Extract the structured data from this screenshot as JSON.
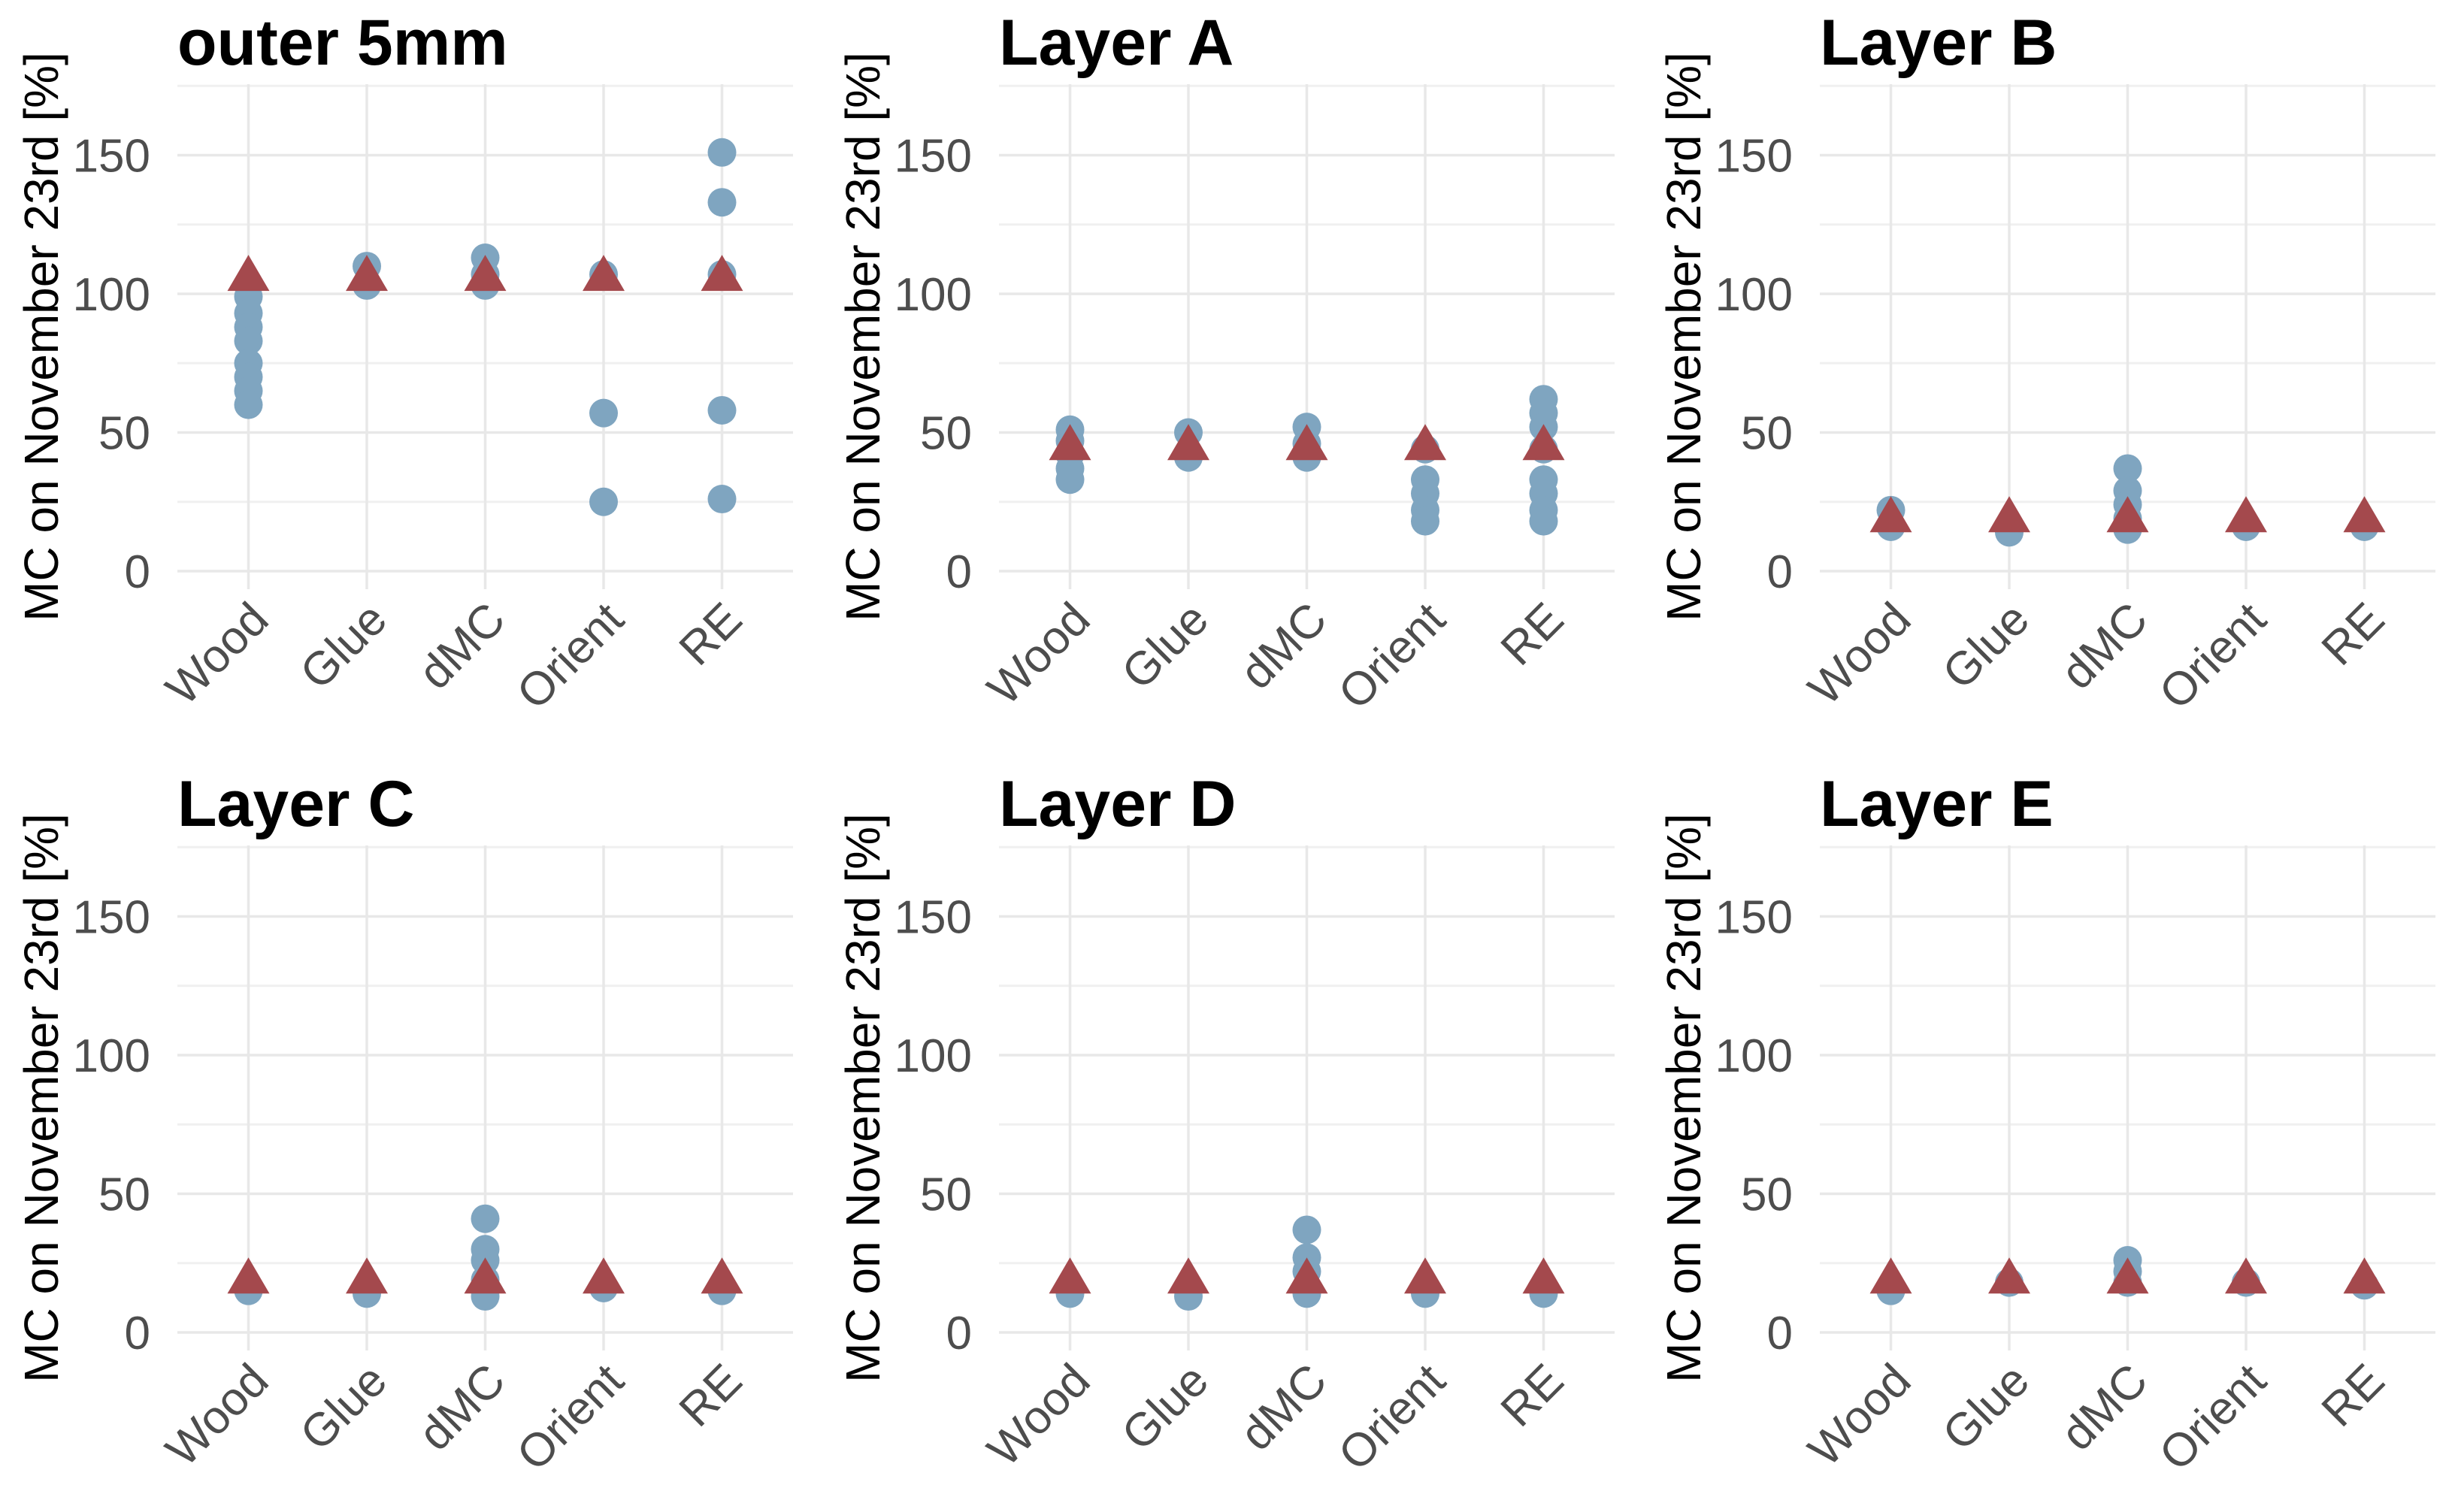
{
  "figure": {
    "kind": "faceted scatter plot, 2 rows x 3 columns, white background",
    "y_axis_title": "MC on November 23rd [%]",
    "categories": [
      "Wood",
      "Glue",
      "dMC",
      "Orient",
      "RE"
    ],
    "y_ticks": [
      0,
      50,
      100,
      150
    ],
    "colors": {
      "circle_marker": "#7fa5c0",
      "triangle_marker": "#a4494d",
      "grid_major": "#e8e8e8",
      "grid_minor": "#f0f0f0",
      "tick_label_text": "#4d4d4d",
      "title_text": "#000000",
      "background": "#ffffff"
    }
  },
  "chart_data": [
    {
      "type": "scatter",
      "title": "outer 5mm",
      "xlabel": "",
      "ylabel": "MC on November 23rd [%]",
      "categories": [
        "Wood",
        "Glue",
        "dMC",
        "Orient",
        "RE"
      ],
      "y_ticks": [
        0,
        50,
        100,
        150
      ],
      "y_minor_ticks": [
        25,
        75,
        125,
        175
      ],
      "ylim": [
        -6,
        186
      ],
      "grid": true,
      "legend": false,
      "series": [
        {
          "name": "circles",
          "marker": "circle",
          "color": "#7fa5c0",
          "values": [
            [
              99,
              93,
              88,
              83,
              75,
              70,
              65,
              60
            ],
            [
              110,
              103
            ],
            [
              113,
              107,
              103
            ],
            [
              107,
              57,
              25
            ],
            [
              151,
              133,
              107,
              58,
              26
            ]
          ]
        },
        {
          "name": "triangles",
          "marker": "triangle-up",
          "color": "#a4494d",
          "values": [
            [
              107
            ],
            [
              107
            ],
            [
              107
            ],
            [
              107
            ],
            [
              107
            ]
          ]
        }
      ]
    },
    {
      "type": "scatter",
      "title": "Layer A",
      "xlabel": "",
      "ylabel": "MC on November 23rd [%]",
      "categories": [
        "Wood",
        "Glue",
        "dMC",
        "Orient",
        "RE"
      ],
      "y_ticks": [
        0,
        50,
        100,
        150
      ],
      "y_minor_ticks": [
        25,
        75,
        125,
        175
      ],
      "ylim": [
        -6,
        186
      ],
      "grid": true,
      "legend": false,
      "series": [
        {
          "name": "circles",
          "marker": "circle",
          "color": "#7fa5c0",
          "values": [
            [
              51,
              47,
              42,
              37,
              33
            ],
            [
              50,
              41
            ],
            [
              52,
              46,
              41
            ],
            [
              44,
              33,
              28,
              22,
              18
            ],
            [
              62,
              57,
              52,
              44,
              33,
              28,
              22,
              18
            ]
          ]
        },
        {
          "name": "triangles",
          "marker": "triangle-up",
          "color": "#a4494d",
          "values": [
            [
              46
            ],
            [
              46
            ],
            [
              46
            ],
            [
              46
            ],
            [
              46
            ]
          ]
        }
      ]
    },
    {
      "type": "scatter",
      "title": "Layer B",
      "xlabel": "",
      "ylabel": "MC on November 23rd [%]",
      "categories": [
        "Wood",
        "Glue",
        "dMC",
        "Orient",
        "RE"
      ],
      "y_ticks": [
        0,
        50,
        100,
        150
      ],
      "y_minor_ticks": [
        25,
        75,
        125,
        175
      ],
      "ylim": [
        -6,
        186
      ],
      "grid": true,
      "legend": false,
      "series": [
        {
          "name": "circles",
          "marker": "circle",
          "color": "#7fa5c0",
          "values": [
            [
              22,
              16
            ],
            [
              14
            ],
            [
              37,
              29,
              24,
              19,
              15
            ],
            [
              16
            ],
            [
              16
            ]
          ]
        },
        {
          "name": "triangles",
          "marker": "triangle-up",
          "color": "#a4494d",
          "values": [
            [
              20
            ],
            [
              20
            ],
            [
              20
            ],
            [
              20
            ],
            [
              20
            ]
          ]
        }
      ]
    },
    {
      "type": "scatter",
      "title": "Layer C",
      "xlabel": "",
      "ylabel": "MC on November 23rd [%]",
      "categories": [
        "Wood",
        "Glue",
        "dMC",
        "Orient",
        "RE"
      ],
      "y_ticks": [
        0,
        50,
        100,
        150
      ],
      "y_minor_ticks": [
        25,
        75,
        125,
        175
      ],
      "ylim": [
        -6,
        186
      ],
      "grid": true,
      "legend": false,
      "series": [
        {
          "name": "circles",
          "marker": "circle",
          "color": "#7fa5c0",
          "values": [
            [
              15
            ],
            [
              14
            ],
            [
              41,
              30,
              26,
              19,
              13
            ],
            [
              16
            ],
            [
              15
            ]
          ]
        },
        {
          "name": "triangles",
          "marker": "triangle-up",
          "color": "#a4494d",
          "values": [
            [
              20
            ],
            [
              20
            ],
            [
              20
            ],
            [
              20
            ],
            [
              20
            ]
          ]
        }
      ]
    },
    {
      "type": "scatter",
      "title": "Layer D",
      "xlabel": "",
      "ylabel": "MC on November 23rd [%]",
      "categories": [
        "Wood",
        "Glue",
        "dMC",
        "Orient",
        "RE"
      ],
      "y_ticks": [
        0,
        50,
        100,
        150
      ],
      "y_minor_ticks": [
        25,
        75,
        125,
        175
      ],
      "ylim": [
        -6,
        186
      ],
      "grid": true,
      "legend": false,
      "series": [
        {
          "name": "circles",
          "marker": "circle",
          "color": "#7fa5c0",
          "values": [
            [
              14
            ],
            [
              13
            ],
            [
              37,
              27,
              22,
              14
            ],
            [
              14
            ],
            [
              14
            ]
          ]
        },
        {
          "name": "triangles",
          "marker": "triangle-up",
          "color": "#a4494d",
          "values": [
            [
              20
            ],
            [
              20
            ],
            [
              20
            ],
            [
              20
            ],
            [
              20
            ]
          ]
        }
      ]
    },
    {
      "type": "scatter",
      "title": "Layer E",
      "xlabel": "",
      "ylabel": "MC on November 23rd [%]",
      "categories": [
        "Wood",
        "Glue",
        "dMC",
        "Orient",
        "RE"
      ],
      "y_ticks": [
        0,
        50,
        100,
        150
      ],
      "y_minor_ticks": [
        25,
        75,
        125,
        175
      ],
      "ylim": [
        -6,
        186
      ],
      "grid": true,
      "legend": false,
      "series": [
        {
          "name": "circles",
          "marker": "circle",
          "color": "#7fa5c0",
          "values": [
            [
              15
            ],
            [
              18
            ],
            [
              26,
              22,
              18
            ],
            [
              18
            ],
            [
              17
            ]
          ]
        },
        {
          "name": "triangles",
          "marker": "triangle-up",
          "color": "#a4494d",
          "values": [
            [
              20
            ],
            [
              20
            ],
            [
              20
            ],
            [
              20
            ],
            [
              20
            ]
          ]
        }
      ]
    }
  ]
}
